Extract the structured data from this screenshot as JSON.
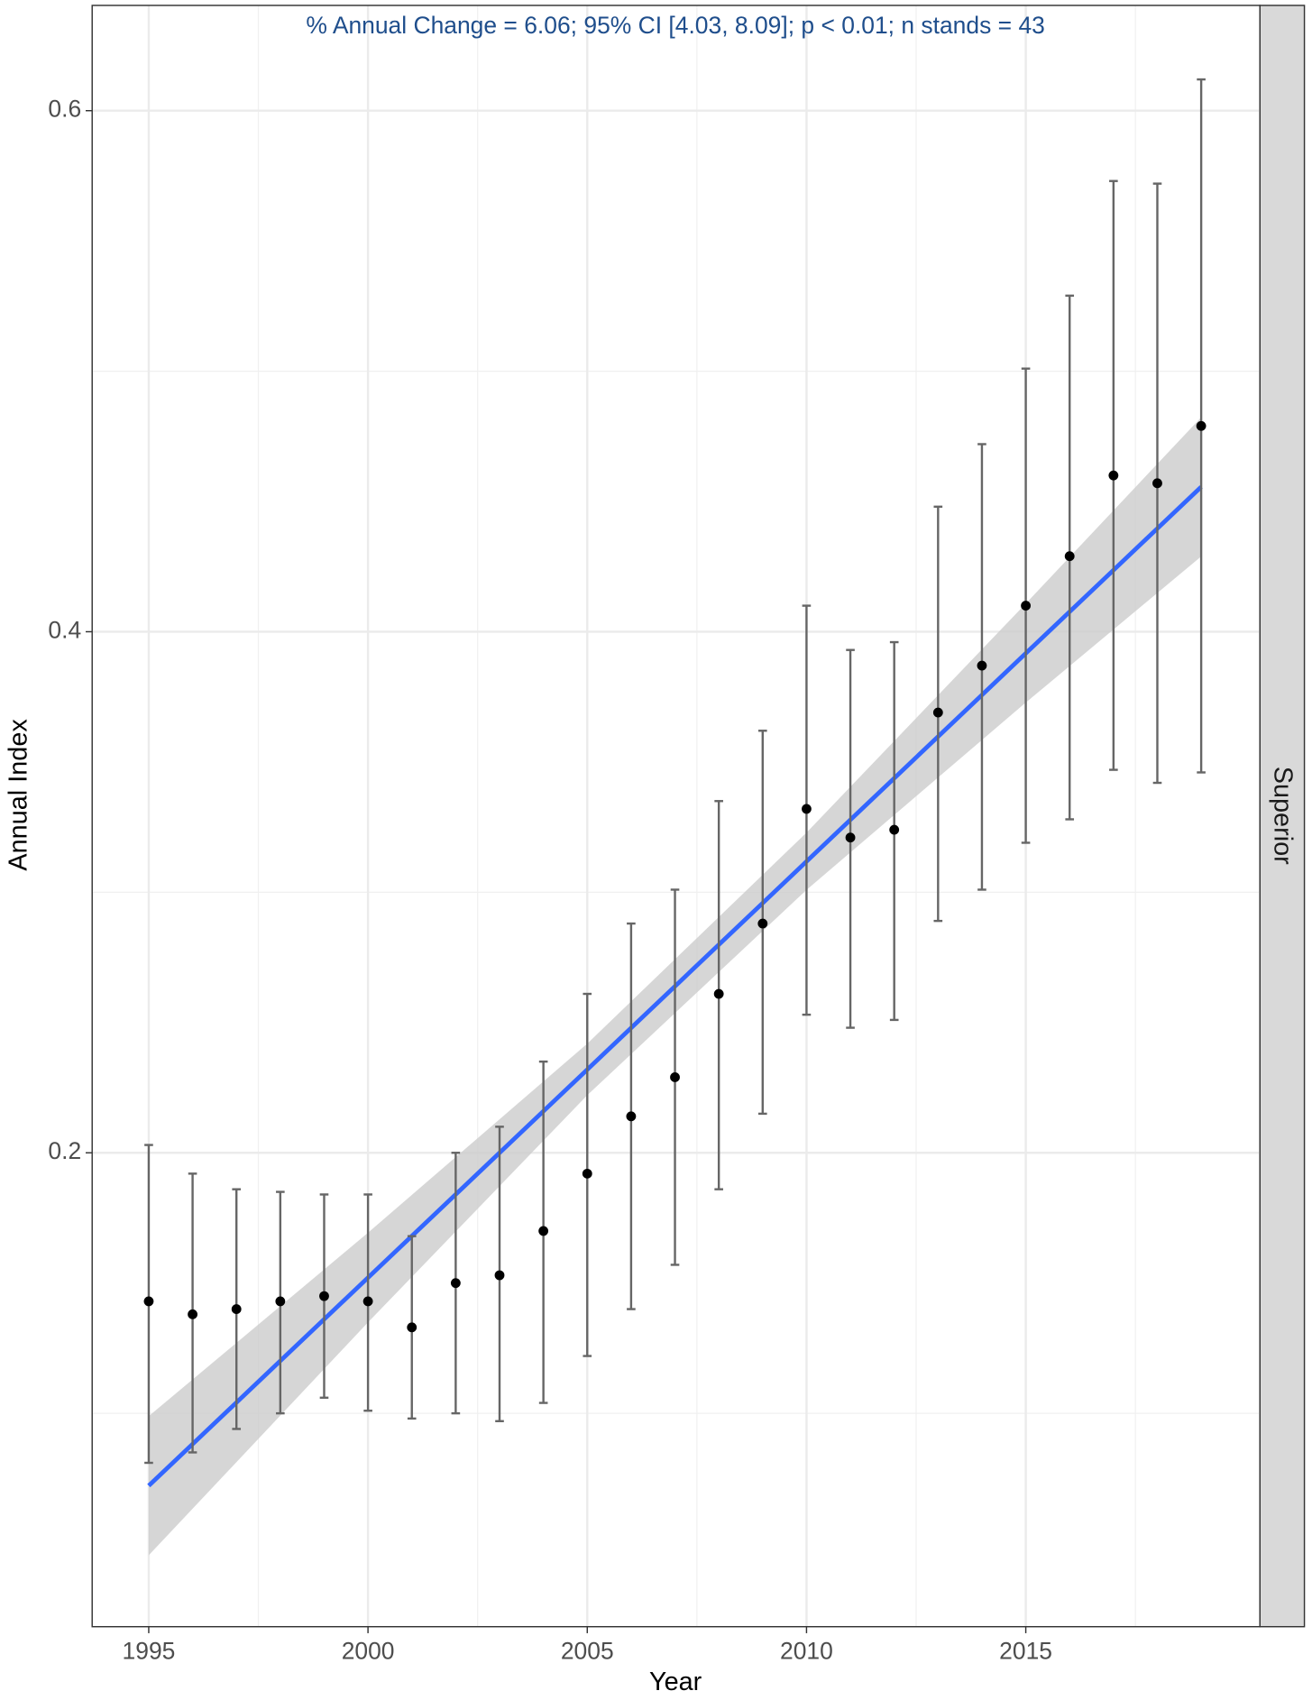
{
  "chart_data": {
    "type": "errorbar",
    "annotation": "% Annual Change = 6.06; 95% CI [4.03, 8.09]; p < 0.01; n stands = 43",
    "annotation_color": "#1f4e8c",
    "xlabel": "Year",
    "ylabel": "Annual Index",
    "facet_label": "Superior",
    "x": [
      1995,
      1996,
      1997,
      1998,
      1999,
      2000,
      2001,
      2002,
      2003,
      2004,
      2005,
      2006,
      2007,
      2008,
      2009,
      2010,
      2011,
      2012,
      2013,
      2014,
      2015,
      2016,
      2017,
      2018,
      2019
    ],
    "values": [
      0.143,
      0.138,
      0.14,
      0.143,
      0.145,
      0.143,
      0.133,
      0.15,
      0.153,
      0.17,
      0.192,
      0.214,
      0.229,
      0.261,
      0.288,
      0.332,
      0.321,
      0.324,
      0.369,
      0.387,
      0.41,
      0.429,
      0.46,
      0.457,
      0.479
    ],
    "lower": [
      0.081,
      0.085,
      0.094,
      0.1,
      0.106,
      0.101,
      0.098,
      0.1,
      0.097,
      0.104,
      0.122,
      0.14,
      0.157,
      0.186,
      0.215,
      0.253,
      0.248,
      0.251,
      0.289,
      0.301,
      0.319,
      0.328,
      0.347,
      0.342,
      0.346
    ],
    "upper": [
      0.203,
      0.192,
      0.186,
      0.185,
      0.184,
      0.184,
      0.168,
      0.2,
      0.21,
      0.235,
      0.261,
      0.288,
      0.301,
      0.335,
      0.362,
      0.41,
      0.393,
      0.396,
      0.448,
      0.472,
      0.501,
      0.529,
      0.573,
      0.572,
      0.612
    ],
    "point_color": "#000000",
    "errorbar_color": "#666666",
    "trend": {
      "x": [
        1995,
        2019
      ],
      "values": [
        0.0722,
        0.4556
      ],
      "color": "#3366ff"
    },
    "band": {
      "x": [
        1995,
        2000,
        2005,
        2010,
        2015,
        2019
      ],
      "lower": [
        0.0455,
        0.1349,
        0.2221,
        0.3009,
        0.3728,
        0.4289
      ],
      "upper": [
        0.0989,
        0.1693,
        0.2419,
        0.3229,
        0.4108,
        0.4823
      ],
      "color": "#cccccc"
    },
    "xlim": [
      1993.71,
      2020.34
    ],
    "ylim": [
      0.0181,
      0.6404
    ],
    "xticks": [
      1995,
      2000,
      2005,
      2010,
      2015
    ],
    "yticks": [
      0.2,
      0.4,
      0.6
    ],
    "minor_xticks": [
      1997.5,
      2002.5,
      2007.5,
      2012.5,
      2017.5
    ],
    "minor_yticks": [
      0.1,
      0.3,
      0.5
    ],
    "grid": true
  }
}
